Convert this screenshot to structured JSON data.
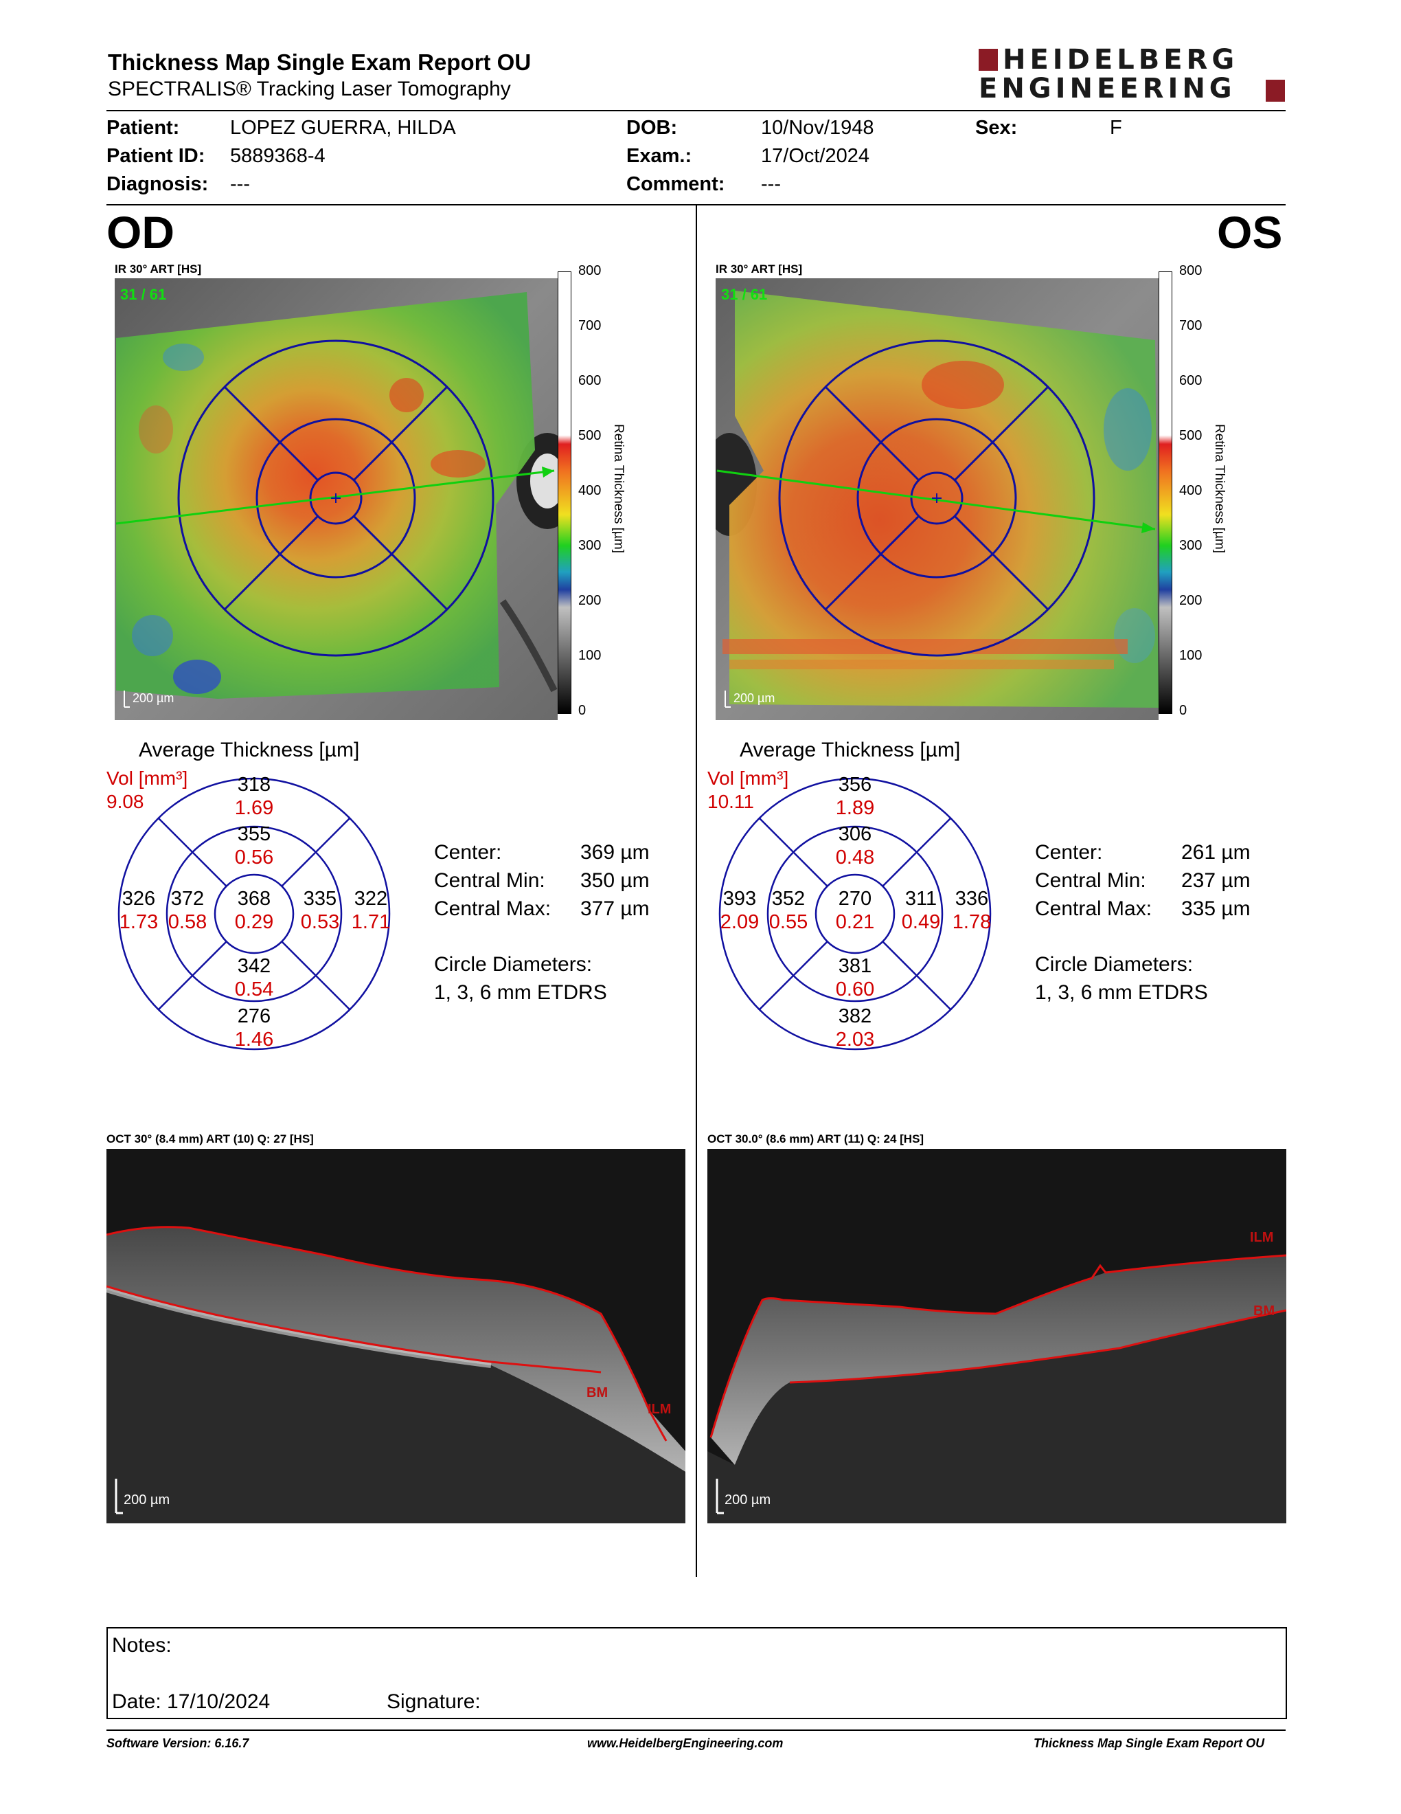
{
  "header": {
    "title": "Thickness Map Single Exam Report OU",
    "subtitle": "SPECTRALIS® Tracking Laser Tomography",
    "logo_line1": "HEIDELBERG",
    "logo_line2": "ENGINEERING",
    "brand_color": "#8b1b25"
  },
  "patient": {
    "patient_label": "Patient:",
    "patient_value": "LOPEZ GUERRA, HILDA",
    "id_label": "Patient ID:",
    "id_value": "5889368-4",
    "diagnosis_label": "Diagnosis:",
    "diagnosis_value": "---",
    "dob_label": "DOB:",
    "dob_value": "10/Nov/1948",
    "exam_label": "Exam.:",
    "exam_value": "17/Oct/2024",
    "comment_label": "Comment:",
    "comment_value": "---",
    "sex_label": "Sex:",
    "sex_value": "F"
  },
  "od": {
    "eye": "OD",
    "map_label": "IR 30° ART [HS]",
    "frame": "31 / 61",
    "scale": "200 µm",
    "avg_title": "Average Thickness [µm]",
    "vol_label": "Vol [mm³]",
    "total_vol": "9.08",
    "grid": {
      "outer_sup": {
        "t": "318",
        "v": "1.69"
      },
      "inner_sup": {
        "t": "355",
        "v": "0.56"
      },
      "outer_nas": {
        "t": "326",
        "v": "1.73"
      },
      "inner_nas": {
        "t": "372",
        "v": "0.58"
      },
      "center": {
        "t": "368",
        "v": "0.29"
      },
      "inner_tmp": {
        "t": "335",
        "v": "0.53"
      },
      "outer_tmp": {
        "t": "322",
        "v": "1.71"
      },
      "inner_inf": {
        "t": "342",
        "v": "0.54"
      },
      "outer_inf": {
        "t": "276",
        "v": "1.46"
      }
    },
    "stats": {
      "center_label": "Center:",
      "center_value": "369 µm",
      "min_label": "Central Min:",
      "min_value": "350 µm",
      "max_label": "Central Max:",
      "max_value": "377 µm",
      "circle_label": "Circle Diameters:",
      "circle_value": "1, 3, 6 mm ETDRS"
    },
    "oct_label": "OCT 30° (8.4 mm) ART (10) Q: 27 [HS]",
    "bm": "BM",
    "ilm": "ILM",
    "oct_scale": "200 µm"
  },
  "os": {
    "eye": "OS",
    "map_label": "IR 30° ART [HS]",
    "frame": "31 / 61",
    "scale": "200 µm",
    "avg_title": "Average Thickness [µm]",
    "vol_label": "Vol [mm³]",
    "total_vol": "10.11",
    "grid": {
      "outer_sup": {
        "t": "356",
        "v": "1.89"
      },
      "inner_sup": {
        "t": "306",
        "v": "0.48"
      },
      "outer_nas": {
        "t": "393",
        "v": "2.09"
      },
      "inner_nas": {
        "t": "352",
        "v": "0.55"
      },
      "center": {
        "t": "270",
        "v": "0.21"
      },
      "inner_tmp": {
        "t": "311",
        "v": "0.49"
      },
      "outer_tmp": {
        "t": "336",
        "v": "1.78"
      },
      "inner_inf": {
        "t": "381",
        "v": "0.60"
      },
      "outer_inf": {
        "t": "382",
        "v": "2.03"
      }
    },
    "stats": {
      "center_label": "Center:",
      "center_value": "261 µm",
      "min_label": "Central Min:",
      "min_value": "237 µm",
      "max_label": "Central Max:",
      "max_value": "335 µm",
      "circle_label": "Circle Diameters:",
      "circle_value": "1, 3, 6 mm ETDRS"
    },
    "oct_label": "OCT 30.0° (8.6 mm) ART (11) Q: 24 [HS]",
    "bm": "BM",
    "ilm": "ILM",
    "oct_scale": "200 µm"
  },
  "colorbar": {
    "title": "Retina Thickness [µm]",
    "ticks": [
      "800",
      "700",
      "600",
      "500",
      "400",
      "300",
      "200",
      "100",
      "0"
    ]
  },
  "notes": {
    "notes_label": "Notes:",
    "date_label": "Date: 17/10/2024",
    "signature_label": "Signature:"
  },
  "footer": {
    "software": "Software Version: 6.16.7",
    "website": "www.HeidelbergEngineering.com",
    "report": "Thickness Map Single Exam Report OU"
  }
}
